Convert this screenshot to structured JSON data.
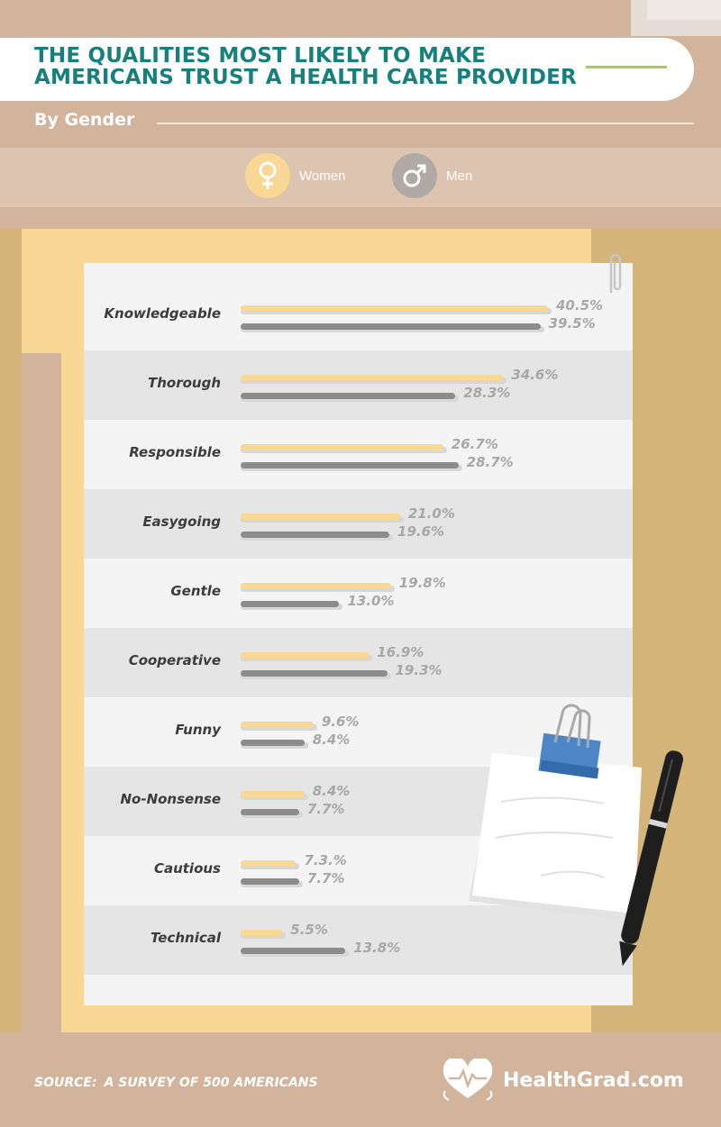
{
  "header": {
    "title": "THE QUALITIES MOST LIKELY TO MAKE AMERICANS TRUST A HEALTH CARE PROVIDER",
    "subtitle": "By Gender"
  },
  "legend": {
    "women": {
      "label": "Women",
      "color": "#f8d894",
      "icon": "female-symbol-icon"
    },
    "men": {
      "label": "Men",
      "color": "#8c8c8c",
      "icon": "male-symbol-icon"
    }
  },
  "chart_data": {
    "type": "bar",
    "orientation": "horizontal",
    "title": "THE QUALITIES MOST LIKELY TO MAKE AMERICANS TRUST A HEALTH CARE PROVIDER",
    "subtitle": "By Gender",
    "categories": [
      "Knowledgeable",
      "Thorough",
      "Responsible",
      "Easygoing",
      "Gentle",
      "Cooperative",
      "Funny",
      "No-Nonsense",
      "Cautious",
      "Technical"
    ],
    "series": [
      {
        "name": "Women",
        "color": "#f8d894",
        "values": [
          40.5,
          34.6,
          26.7,
          21.0,
          19.8,
          16.9,
          9.6,
          8.4,
          7.3,
          5.5
        ],
        "labels": [
          "40.5%",
          "34.6%",
          "26.7%",
          "21.0%",
          "19.8%",
          "16.9%",
          "9.6%",
          "8.4%",
          "7.3.%",
          "5.5%"
        ]
      },
      {
        "name": "Men",
        "color": "#8c8c8c",
        "values": [
          39.5,
          28.3,
          28.7,
          19.6,
          13.0,
          19.3,
          8.4,
          7.7,
          7.7,
          13.8
        ],
        "labels": [
          "39.5%",
          "28.3%",
          "28.7%",
          "19.6%",
          "13.0%",
          "19.3%",
          "8.4%",
          "7.7%",
          "7.7%",
          "13.8%"
        ]
      }
    ],
    "xlim": [
      0,
      45
    ],
    "legend": "top"
  },
  "footer": {
    "source_label": "SOURCE:",
    "source_value": "A SURVEY OF 500 AMERICANS",
    "brand": "HealthGrad.com"
  }
}
